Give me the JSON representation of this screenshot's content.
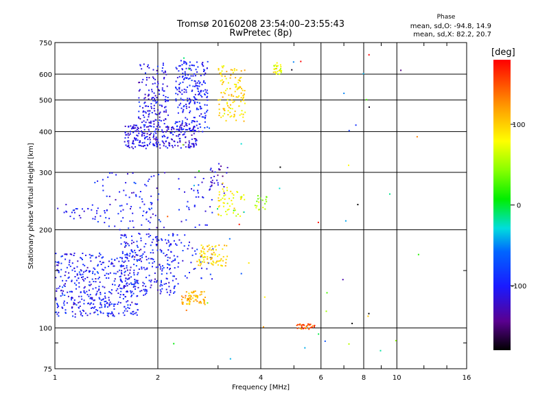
{
  "chart_data": {
    "type": "scatter",
    "title": "Tromsø 20160208 23:54:00–23:55:43",
    "subtitle": "RwPretec (8p)",
    "xlabel": "Frequency [MHz]",
    "ylabel": "Stationary phase Virtual Height [km]",
    "x_scale": "log",
    "y_scale": "log",
    "xlim": [
      1,
      16
    ],
    "ylim": [
      75,
      750
    ],
    "x_ticks": [
      {
        "value": 1,
        "label": "1"
      },
      {
        "value": 2,
        "label": "2"
      },
      {
        "value": 4,
        "label": "4"
      },
      {
        "value": 6,
        "label": "6"
      },
      {
        "value": 8,
        "label": "8"
      },
      {
        "value": 10,
        "label": "10"
      },
      {
        "value": 16,
        "label": "16"
      }
    ],
    "y_ticks": [
      {
        "value": 75,
        "label": "75"
      },
      {
        "value": 100,
        "label": "100"
      },
      {
        "value": 200,
        "label": "200"
      },
      {
        "value": 300,
        "label": "300"
      },
      {
        "value": 400,
        "label": "400"
      },
      {
        "value": 500,
        "label": "500"
      },
      {
        "value": 600,
        "label": "600"
      },
      {
        "value": 750,
        "label": "750"
      }
    ],
    "grid": true,
    "colorbar": {
      "label": "[deg]",
      "range": [
        -180,
        180
      ],
      "ticks": [
        {
          "value": 100,
          "label": "100"
        },
        {
          "value": 0,
          "label": "0"
        },
        {
          "value": -100,
          "label": "-100"
        }
      ]
    },
    "phase_stats": {
      "title": "Phase",
      "o_mode": "mean, sd,O: -94.8, 14.9",
      "x_mode": "mean, sd,X: 82.2, 20.7"
    },
    "clusters": [
      {
        "f": [
          1.0,
          1.75
        ],
        "h": [
          108,
          170
        ],
        "phase_mean": -100,
        "phase_sd": 15,
        "count": 420
      },
      {
        "f": [
          1.55,
          2.3
        ],
        "h": [
          125,
          195
        ],
        "phase_mean": -100,
        "phase_sd": 15,
        "count": 260
      },
      {
        "f": [
          1.0,
          1.45
        ],
        "h": [
          215,
          240
        ],
        "phase_mean": -100,
        "phase_sd": 15,
        "count": 30
      },
      {
        "f": [
          1.3,
          2.1
        ],
        "h": [
          200,
          300
        ],
        "phase_mean": -100,
        "phase_sd": 15,
        "count": 90
      },
      {
        "f": [
          1.6,
          2.6
        ],
        "h": [
          355,
          420
        ],
        "phase_mean": -110,
        "phase_sd": 15,
        "count": 260
      },
      {
        "f": [
          1.75,
          2.15
        ],
        "h": [
          420,
          650
        ],
        "phase_mean": -108,
        "phase_sd": 12,
        "count": 150
      },
      {
        "f": [
          2.25,
          2.8
        ],
        "h": [
          400,
          660
        ],
        "phase_mean": -100,
        "phase_sd": 12,
        "count": 230
      },
      {
        "f": [
          2.3,
          2.9
        ],
        "h": [
          140,
          290
        ],
        "phase_mean": -100,
        "phase_sd": 15,
        "count": 70
      },
      {
        "f": [
          2.85,
          3.2
        ],
        "h": [
          270,
          320
        ],
        "phase_mean": -120,
        "phase_sd": 15,
        "count": 25
      },
      {
        "f": [
          3.0,
          3.6
        ],
        "h": [
          430,
          640
        ],
        "phase_mean": 95,
        "phase_sd": 15,
        "count": 120
      },
      {
        "f": [
          4.35,
          4.6
        ],
        "h": [
          600,
          650
        ],
        "phase_mean": 80,
        "phase_sd": 15,
        "count": 30
      },
      {
        "f": [
          2.35,
          2.75
        ],
        "h": [
          118,
          130
        ],
        "phase_mean": 110,
        "phase_sd": 12,
        "count": 70
      },
      {
        "f": [
          2.6,
          3.2
        ],
        "h": [
          155,
          180
        ],
        "phase_mean": 95,
        "phase_sd": 15,
        "count": 80
      },
      {
        "f": [
          3.0,
          3.6
        ],
        "h": [
          220,
          270
        ],
        "phase_mean": 80,
        "phase_sd": 15,
        "count": 50
      },
      {
        "f": [
          3.85,
          4.2
        ],
        "h": [
          230,
          255
        ],
        "phase_mean": 55,
        "phase_sd": 15,
        "count": 18
      },
      {
        "f": [
          5.1,
          5.75
        ],
        "h": [
          99,
          103
        ],
        "phase_mean": 150,
        "phase_sd": 20,
        "count": 35
      },
      {
        "f": [
          2.0,
          12.0
        ],
        "h": [
          80,
          700
        ],
        "phase_mean": 0,
        "phase_sd": 110,
        "count": 55
      }
    ]
  }
}
